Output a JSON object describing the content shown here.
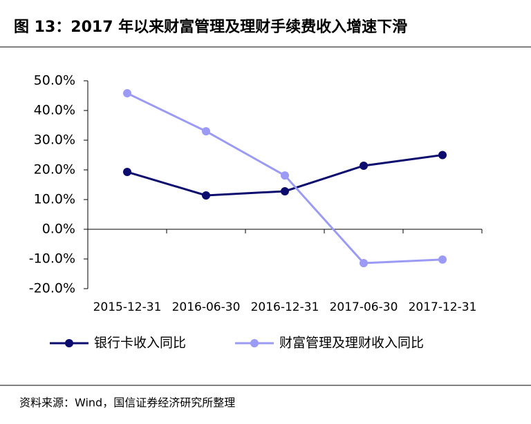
{
  "chart_data": {
    "type": "line",
    "title": "图 13：2017 年以来财富管理及理财手续费收入增速下滑",
    "source": "资料来源：Wind，国信证券经济研究所整理",
    "categories": [
      "2015-12-31",
      "2016-06-30",
      "2016-12-31",
      "2017-06-30",
      "2017-12-31"
    ],
    "series": [
      {
        "name": "银行卡收入同比",
        "color": "#0c0c6e",
        "values": [
          19.3,
          11.4,
          12.8,
          21.4,
          25.0
        ]
      },
      {
        "name": "财富管理及理财收入同比",
        "color": "#9b9bf5",
        "values": [
          45.8,
          33.0,
          18.1,
          -11.4,
          -10.2
        ]
      }
    ],
    "ylim": [
      -20,
      50
    ],
    "yticks": [
      {
        "value": -20,
        "label": "-20.0%"
      },
      {
        "value": -10,
        "label": "-10.0%"
      },
      {
        "value": 0,
        "label": "0.0%"
      },
      {
        "value": 10,
        "label": "10.0%"
      },
      {
        "value": 20,
        "label": "20.0%"
      },
      {
        "value": 30,
        "label": "30.0%"
      },
      {
        "value": 40,
        "label": "40.0%"
      },
      {
        "value": 50,
        "label": "50.0%"
      }
    ]
  }
}
